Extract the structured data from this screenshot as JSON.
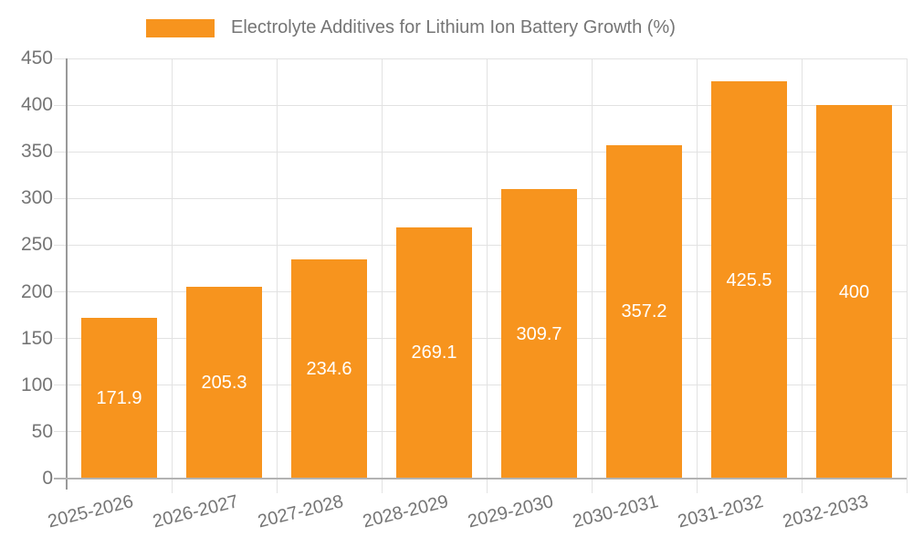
{
  "legend": {
    "label": "Electrolyte Additives for Lithium Ion Battery Growth (%)",
    "swatch_color": "#F7941E"
  },
  "chart_data": {
    "type": "bar",
    "title": "Electrolyte Additives for Lithium Ion Battery Growth (%)",
    "categories": [
      "2025-2026",
      "2026-2027",
      "2027-2028",
      "2028-2029",
      "2029-2030",
      "2030-2031",
      "2031-2032",
      "2032-2033"
    ],
    "values": [
      171.9,
      205.3,
      234.6,
      269.1,
      309.7,
      357.2,
      425.5,
      400
    ],
    "value_labels": [
      "171.9",
      "205.3",
      "234.6",
      "269.1",
      "309.7",
      "357.2",
      "425.5",
      "400"
    ],
    "xlabel": "",
    "ylabel": "",
    "ylim": [
      0,
      450
    ],
    "y_ticks": [
      0,
      50,
      100,
      150,
      200,
      250,
      300,
      350,
      400,
      450
    ],
    "grid": true,
    "legend_position": "top",
    "bar_color": "#F7941E",
    "value_label_color": "#FFFFFF",
    "axis_text_color": "#757575",
    "gridline_color": "#E2E2E2"
  }
}
